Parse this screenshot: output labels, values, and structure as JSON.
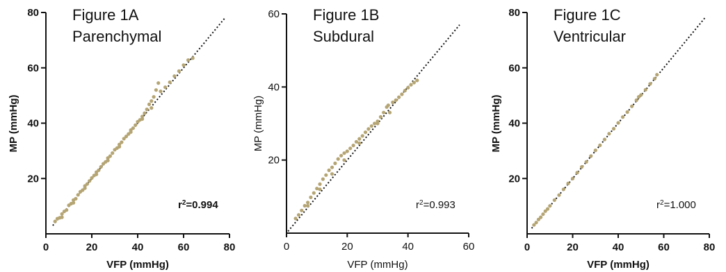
{
  "chart_data": [
    {
      "type": "scatter",
      "title_line1": "Figure 1A",
      "title_line2": "Parenchymal",
      "xlabel": "VFP (mmHg)",
      "ylabel": "MP (mmHg)",
      "xlim": [
        0,
        80
      ],
      "ylim": [
        0,
        80
      ],
      "xticks": [
        0,
        20,
        40,
        60,
        80
      ],
      "yticks": [
        20,
        40,
        60,
        80
      ],
      "r2_prefix": "r",
      "r2_value": "=0.994",
      "point_color": "#b5a574",
      "identity_line": [
        [
          3,
          3
        ],
        [
          78,
          78
        ]
      ],
      "series": [
        {
          "values": [
            [
              4,
              4.5
            ],
            [
              5,
              5.5
            ],
            [
              6,
              5.8
            ],
            [
              7,
              7.2
            ],
            [
              8,
              8.1
            ],
            [
              9,
              8.6
            ],
            [
              10,
              10.3
            ],
            [
              11,
              10.9
            ],
            [
              12,
              12.2
            ],
            [
              13,
              12.7
            ],
            [
              14,
              14.1
            ],
            [
              15,
              15.2
            ],
            [
              16,
              15.8
            ],
            [
              17,
              17.3
            ],
            [
              18,
              18.0
            ],
            [
              19,
              19.1
            ],
            [
              20,
              20.2
            ],
            [
              21,
              21.1
            ],
            [
              22,
              22.3
            ],
            [
              23,
              23.0
            ],
            [
              24,
              24.2
            ],
            [
              25,
              25.3
            ],
            [
              26,
              26.0
            ],
            [
              27,
              27.4
            ],
            [
              28,
              28.1
            ],
            [
              29,
              29.2
            ],
            [
              30,
              30.4
            ],
            [
              31,
              31.0
            ],
            [
              32,
              32.3
            ],
            [
              33,
              33.1
            ],
            [
              34,
              34.4
            ],
            [
              35,
              35.2
            ],
            [
              36,
              36.1
            ],
            [
              37,
              37.5
            ],
            [
              38,
              38.2
            ],
            [
              39,
              39.3
            ],
            [
              40,
              40.5
            ],
            [
              41,
              41.2
            ],
            [
              42,
              42.4
            ],
            [
              43,
              43.6
            ],
            [
              44,
              45.0
            ],
            [
              45,
              46.8
            ],
            [
              46,
              48.0
            ],
            [
              47,
              49.5
            ],
            [
              48,
              52.0
            ],
            [
              49,
              54.5
            ],
            [
              50,
              51.5
            ],
            [
              52,
              53.0
            ],
            [
              54,
              54.8
            ],
            [
              56,
              57.0
            ],
            [
              58,
              58.8
            ],
            [
              60,
              61.0
            ],
            [
              62,
              62.8
            ],
            [
              64,
              63.5
            ],
            [
              7,
              6.0
            ],
            [
              12,
              11.2
            ],
            [
              17,
              16.5
            ],
            [
              22,
              21.5
            ],
            [
              27,
              26.5
            ],
            [
              32,
              31.5
            ],
            [
              37,
              36.8
            ],
            [
              42,
              41.5
            ],
            [
              46,
              45.5
            ]
          ]
        }
      ]
    },
    {
      "type": "scatter",
      "title_line1": "Figure 1B",
      "title_line2": "Subdural",
      "xlabel": "VFP (mmHg)",
      "ylabel": "MP (mmHg)",
      "xlim": [
        0,
        60
      ],
      "ylim": [
        0,
        60
      ],
      "xticks": [
        0,
        20,
        40,
        60
      ],
      "yticks": [
        20,
        40,
        60
      ],
      "r2_prefix": "r",
      "r2_value": "=0.993",
      "point_color": "#b5a574",
      "identity_line": [
        [
          0.5,
          0.5
        ],
        [
          57,
          57
        ]
      ],
      "series": [
        {
          "values": [
            [
              3,
              4.0
            ],
            [
              4,
              5.0
            ],
            [
              5,
              6.2
            ],
            [
              6,
              7.5
            ],
            [
              7,
              8.4
            ],
            [
              8,
              9.8
            ],
            [
              9,
              11.0
            ],
            [
              10,
              12.2
            ],
            [
              11,
              13.4
            ],
            [
              12,
              14.8
            ],
            [
              13,
              15.9
            ],
            [
              14,
              17.2
            ],
            [
              15,
              18.0
            ],
            [
              16,
              19.1
            ],
            [
              17,
              20.3
            ],
            [
              18,
              21.2
            ],
            [
              19,
              21.9
            ],
            [
              20,
              22.4
            ],
            [
              21,
              23.2
            ],
            [
              22,
              24.0
            ],
            [
              23,
              25.0
            ],
            [
              24,
              25.8
            ],
            [
              25,
              26.6
            ],
            [
              26,
              27.6
            ],
            [
              27,
              28.5
            ],
            [
              28,
              29.3
            ],
            [
              29,
              30.0
            ],
            [
              30,
              30.6
            ],
            [
              31,
              31.8
            ],
            [
              32,
              33.0
            ],
            [
              33,
              34.5
            ],
            [
              33.5,
              35.0
            ],
            [
              34,
              33.0
            ],
            [
              35,
              35.8
            ],
            [
              36,
              36.4
            ],
            [
              37,
              37.2
            ],
            [
              38,
              38.0
            ],
            [
              39,
              39.0
            ],
            [
              40,
              39.8
            ],
            [
              41,
              40.6
            ],
            [
              42,
              41.2
            ],
            [
              43,
              41.8
            ],
            [
              7,
              7.5
            ],
            [
              11,
              12.0
            ],
            [
              15,
              16.2
            ],
            [
              19,
              20.0
            ],
            [
              24,
              24.6
            ],
            [
              30,
              30.0
            ]
          ]
        }
      ]
    },
    {
      "type": "scatter",
      "title_line1": "Figure 1C",
      "title_line2": "Ventricular",
      "xlabel": "VFP (mmHg)",
      "ylabel": "MP (mmHg)",
      "xlim": [
        0,
        80
      ],
      "ylim": [
        0,
        80
      ],
      "xticks": [
        0,
        20,
        40,
        60,
        80
      ],
      "yticks": [
        20,
        40,
        60,
        80
      ],
      "r2_prefix": "r",
      "r2_value": "=1.000",
      "point_color": "#b5a574",
      "identity_line": [
        [
          2,
          2
        ],
        [
          78,
          78
        ]
      ],
      "series": [
        {
          "values": [
            [
              3,
              3.2
            ],
            [
              4,
              4.1
            ],
            [
              5,
              5.2
            ],
            [
              6,
              6.0
            ],
            [
              7,
              7.1
            ],
            [
              8,
              8.2
            ],
            [
              9,
              9.0
            ],
            [
              10,
              10.1
            ],
            [
              12,
              12.2
            ],
            [
              14,
              14.0
            ],
            [
              16,
              16.1
            ],
            [
              18,
              18.2
            ],
            [
              20,
              20.0
            ],
            [
              22,
              22.1
            ],
            [
              24,
              24.2
            ],
            [
              26,
              26.0
            ],
            [
              28,
              28.1
            ],
            [
              30,
              30.2
            ],
            [
              32,
              32.0
            ],
            [
              34,
              34.1
            ],
            [
              36,
              36.2
            ],
            [
              38,
              38.0
            ],
            [
              40,
              40.1
            ],
            [
              42,
              42.2
            ],
            [
              44,
              44.0
            ],
            [
              46,
              46.1
            ],
            [
              48,
              48.3
            ],
            [
              49,
              49.5
            ],
            [
              50,
              50.2
            ],
            [
              52,
              52.1
            ],
            [
              54,
              54.2
            ],
            [
              56,
              56.1
            ],
            [
              57,
              57.5
            ]
          ]
        }
      ]
    }
  ]
}
